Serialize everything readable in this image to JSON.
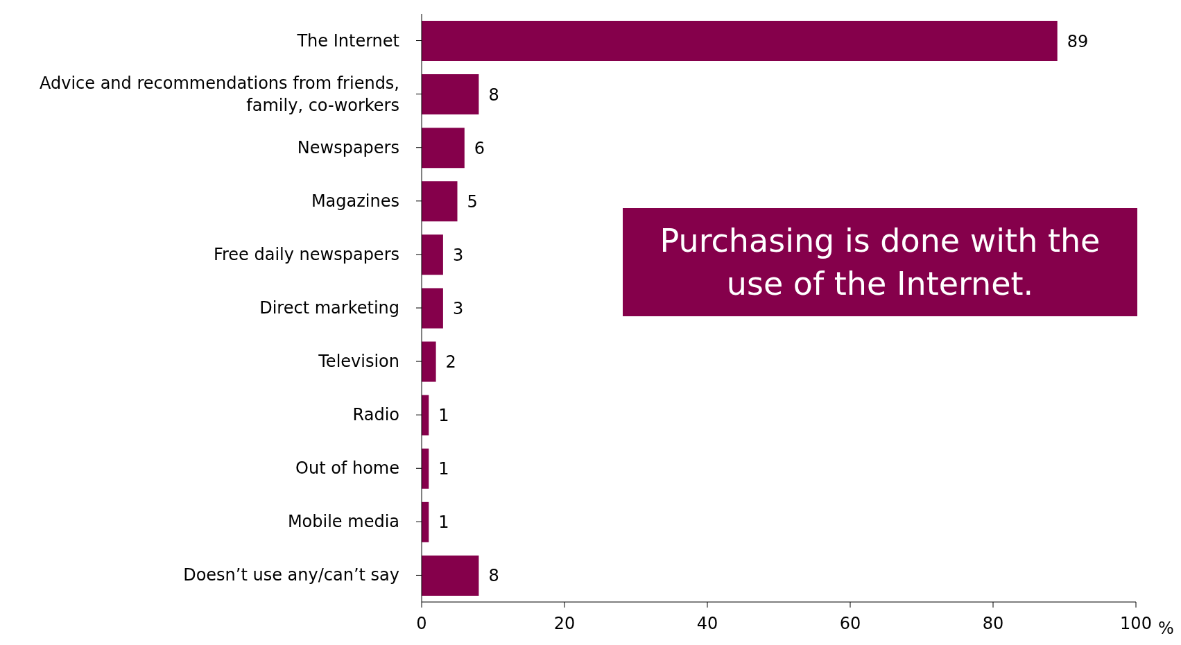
{
  "chart_data": {
    "type": "bar",
    "orientation": "horizontal",
    "categories": [
      "The Internet",
      "Advice and recommendations from friends, family, co-workers",
      "Newspapers",
      "Magazines",
      "Free daily newspapers",
      "Direct marketing",
      "Television",
      "Radio",
      "Out of home",
      "Mobile media",
      "Doesn’t use any/can’t say"
    ],
    "values": [
      89,
      8,
      6,
      5,
      3,
      3,
      2,
      1,
      1,
      1,
      8
    ],
    "color": "#85004b",
    "xlim": [
      0,
      100
    ],
    "xticks": [
      0,
      20,
      40,
      60,
      80,
      100
    ],
    "xlabel": "%",
    "data_labels": true,
    "grid": false,
    "annotations": [
      "Purchasing is done with the use of the Internet."
    ]
  }
}
